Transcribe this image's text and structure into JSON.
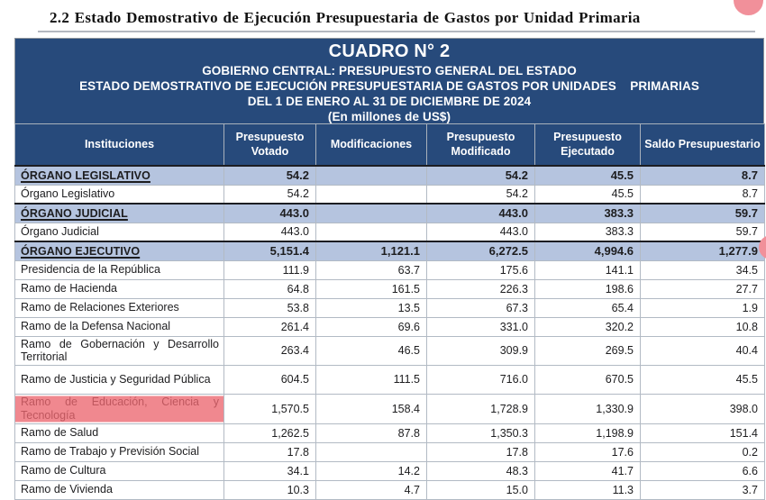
{
  "page": {
    "title": "2.2 Estado Demostrativo de Ejecución Presupuestaria de Gastos por Unidad Primaria"
  },
  "table_header": {
    "line1": "CUADRO N° 2",
    "line2": "GOBIERNO CENTRAL: PRESUPUESTO GENERAL DEL ESTADO",
    "line3": "ESTADO DEMOSTRATIVO DE EJECUCIÓN PRESUPUESTARIA DE GASTOS POR UNIDADES    PRIMARIAS",
    "line4": "DEL 1 DE ENERO AL 31 DE DICIEMBRE DE 2024",
    "line5": "(En millones de US$)"
  },
  "columns": [
    "Instituciones",
    "Presupuesto Votado",
    "Modificaciones",
    "Presupuesto Modificado",
    "Presupuesto Ejecutado",
    "Saldo Presupuestario"
  ],
  "rows": [
    {
      "label": "ÓRGANO LEGISLATIVO",
      "type": "section",
      "values": [
        "54.2",
        "",
        "54.2",
        "45.5",
        "8.7"
      ]
    },
    {
      "label": "Órgano Legislativo",
      "type": "normal",
      "values": [
        "54.2",
        "",
        "54.2",
        "45.5",
        "8.7"
      ]
    },
    {
      "label": "ÓRGANO JUDICIAL",
      "type": "section",
      "values": [
        "443.0",
        "",
        "443.0",
        "383.3",
        "59.7"
      ]
    },
    {
      "label": "Órgano Judicial",
      "type": "normal",
      "values": [
        "443.0",
        "",
        "443.0",
        "383.3",
        "59.7"
      ]
    },
    {
      "label": "ÓRGANO EJECUTIVO",
      "type": "section",
      "values": [
        "5,151.4",
        "1,121.1",
        "6,272.5",
        "4,994.6",
        "1,277.9"
      ]
    },
    {
      "label": "Presidencia de la República",
      "type": "normal",
      "values": [
        "111.9",
        "63.7",
        "175.6",
        "141.1",
        "34.5"
      ]
    },
    {
      "label": "Ramo de Hacienda",
      "type": "normal",
      "values": [
        "64.8",
        "161.5",
        "226.3",
        "198.6",
        "27.7"
      ]
    },
    {
      "label": "Ramo de Relaciones Exteriores",
      "type": "normal",
      "values": [
        "53.8",
        "13.5",
        "67.3",
        "65.4",
        "1.9"
      ]
    },
    {
      "label": "Ramo de la Defensa Nacional",
      "type": "normal",
      "values": [
        "261.4",
        "69.6",
        "331.0",
        "320.2",
        "10.8"
      ]
    },
    {
      "label": "Ramo de Gobernación y Desarrollo Territorial",
      "type": "normal",
      "tall": true,
      "values": [
        "263.4",
        "46.5",
        "309.9",
        "269.5",
        "40.4"
      ]
    },
    {
      "label": "Ramo de Justicia y Seguridad Pública",
      "type": "normal",
      "tall": true,
      "values": [
        "604.5",
        "111.5",
        "716.0",
        "670.5",
        "45.5"
      ]
    },
    {
      "label": "Ramo de Educación, Ciencia y Tecnología",
      "type": "highlight",
      "tall": true,
      "values": [
        "1,570.5",
        "158.4",
        "1,728.9",
        "1,330.9",
        "398.0"
      ]
    },
    {
      "label": "Ramo de Salud",
      "type": "normal",
      "values": [
        "1,262.5",
        "87.8",
        "1,350.3",
        "1,198.9",
        "151.4"
      ]
    },
    {
      "label": "Ramo de Trabajo y Previsión Social",
      "type": "normal",
      "values": [
        "17.8",
        "",
        "17.8",
        "17.6",
        "0.2"
      ]
    },
    {
      "label": "Ramo de Cultura",
      "type": "normal",
      "values": [
        "34.1",
        "14.2",
        "48.3",
        "41.7",
        "6.6"
      ]
    },
    {
      "label": "Ramo de Vivienda",
      "type": "normal",
      "values": [
        "10.3",
        "4.7",
        "15.0",
        "11.3",
        "3.7"
      ]
    }
  ],
  "annotations": {
    "highlighted_row": "Ramo de Educación, Ciencia y Tecnología",
    "marks": [
      "highlight-band",
      "circle-top-right",
      "circle-right-edge"
    ]
  },
  "colors": {
    "header_blue": "#274A7B",
    "section_row_blue": "#B5C4DF",
    "highlight_band": "rgba(236,102,112,0.78)",
    "annotation_pink": "#F1909A",
    "grid_gray": "#B2BAC4",
    "outer_border_gray": "#8F959C",
    "section_top_border": "#1C1D22",
    "title_rule_gray": "#B4B8C0",
    "text_black": "#1D1D1F",
    "header_text_white": "#FFFFFF"
  }
}
